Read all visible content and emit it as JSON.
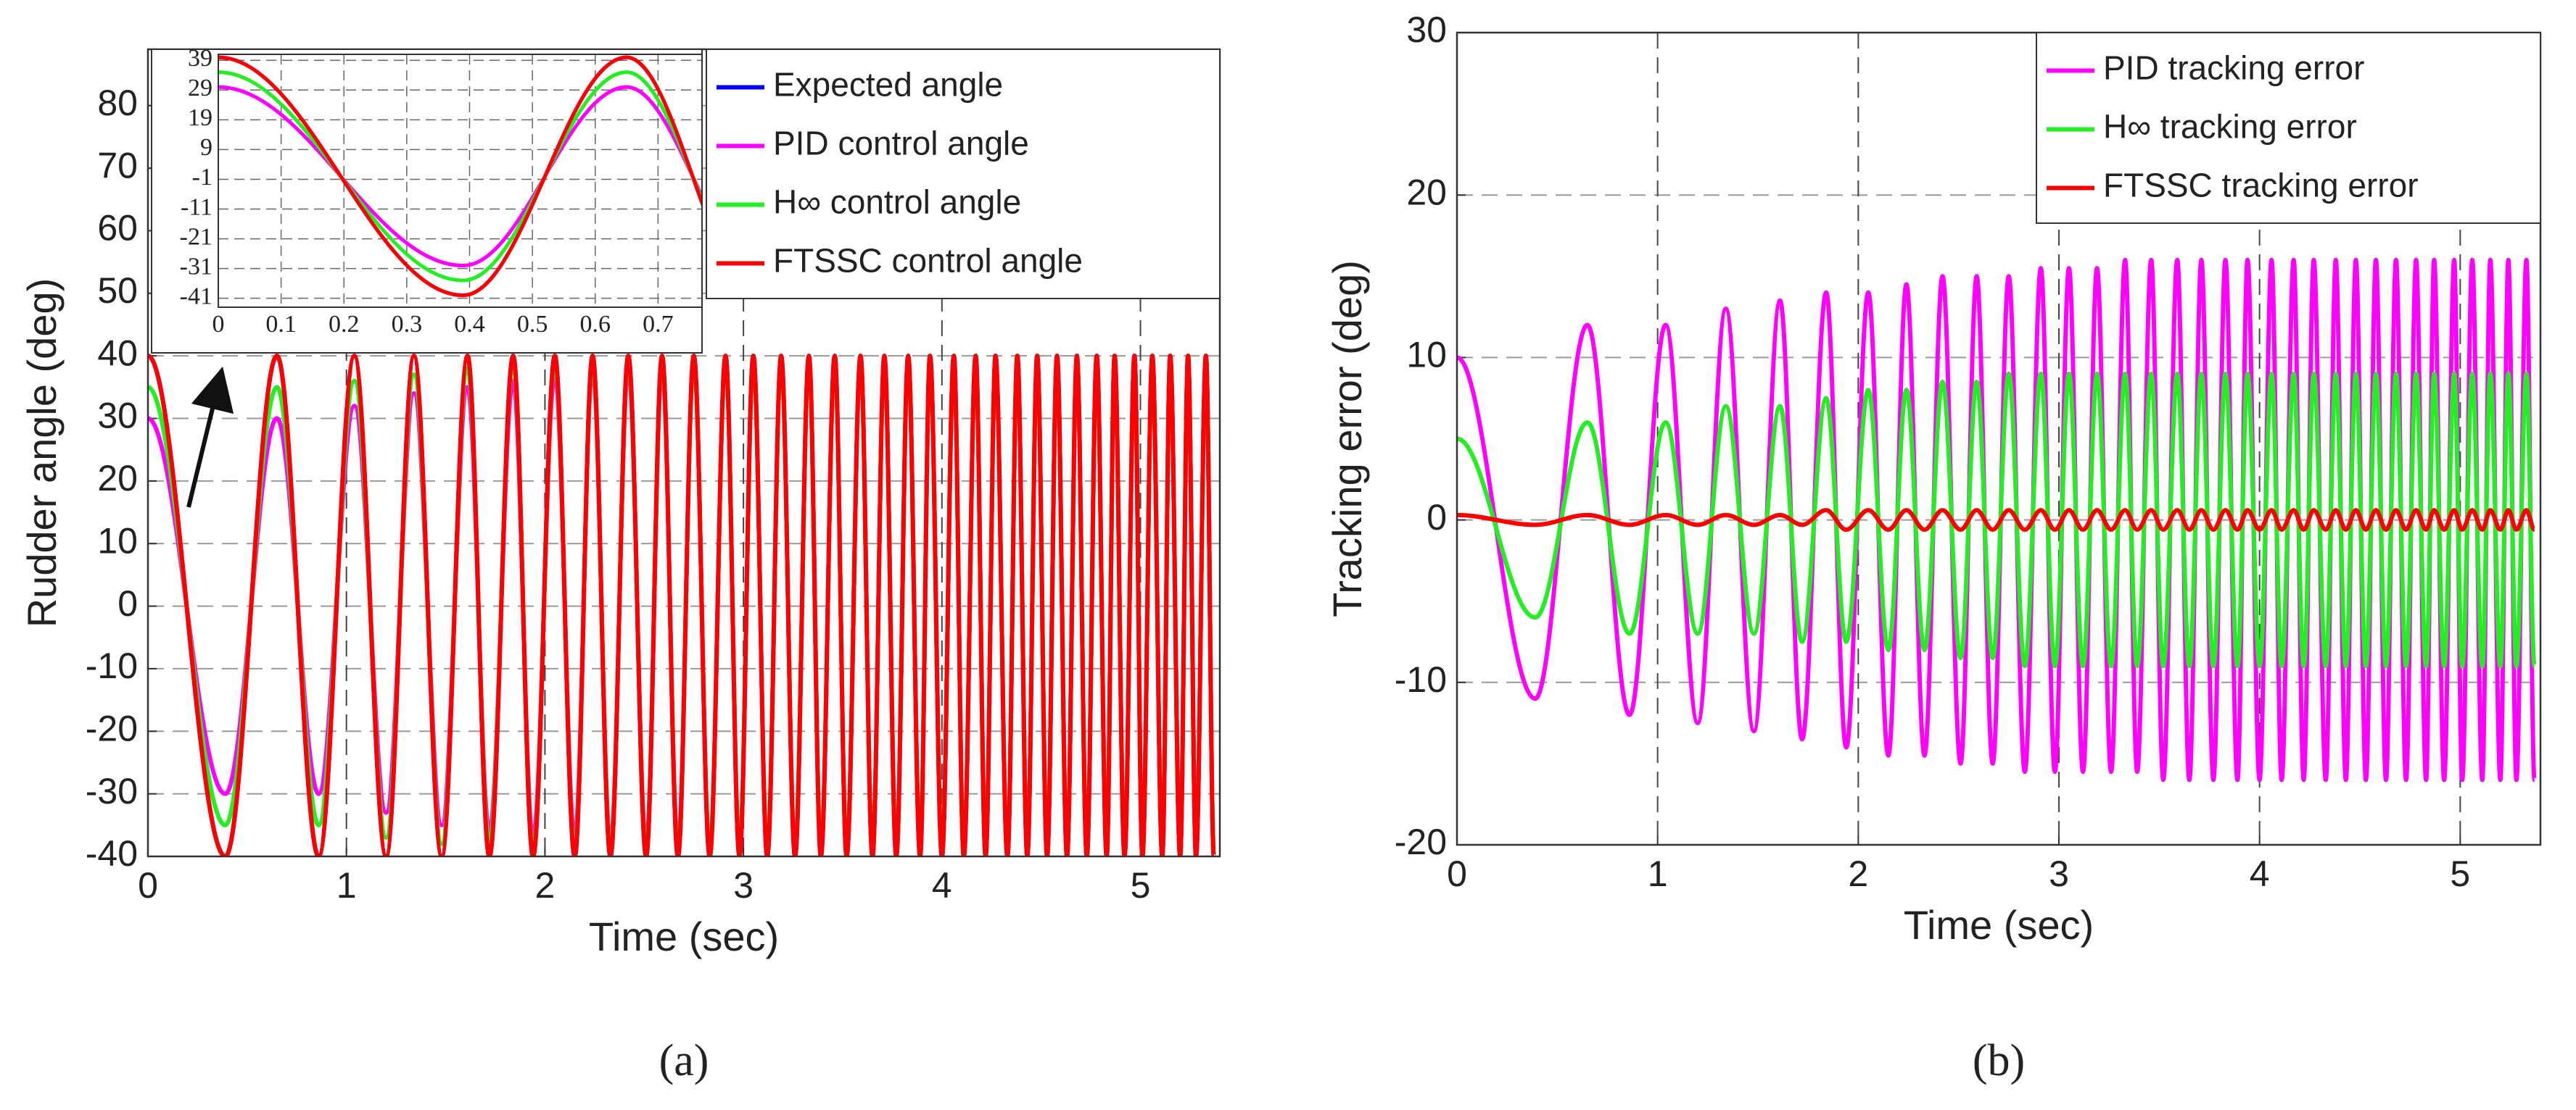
{
  "chart_data": [
    {
      "type": "line",
      "caption": "(a)",
      "xlabel": "Time (sec)",
      "ylabel": "Rudder angle (deg)",
      "xlim": [
        0,
        5.4
      ],
      "xticks": [
        0,
        1,
        2,
        3,
        4,
        5
      ],
      "ylim": [
        -40,
        89
      ],
      "yticks": [
        -40,
        -30,
        -20,
        -10,
        0,
        10,
        20,
        30,
        40,
        50,
        60,
        70,
        80
      ],
      "grid": true,
      "legend": "upper right",
      "x": [
        0,
        0.39,
        0.65,
        0.86,
        1.04,
        1.2,
        1.34,
        1.48,
        1.61,
        1.72,
        1.84,
        1.94,
        2.05,
        2.15,
        2.24,
        2.33,
        2.42,
        2.51,
        2.59,
        2.67,
        2.75,
        2.83,
        2.91,
        2.98,
        3.05,
        3.12,
        3.19,
        3.26,
        3.33,
        3.39,
        3.46,
        3.52,
        3.59,
        3.65,
        3.71,
        3.77,
        3.83,
        3.89,
        3.94,
        4.0,
        4.06,
        4.11,
        4.17,
        4.22,
        4.27,
        4.33,
        4.38,
        4.43,
        4.48,
        4.53,
        4.58,
        4.63,
        4.68,
        4.73,
        4.78,
        4.83,
        4.87,
        4.92,
        4.97,
        5.01,
        5.06,
        5.11,
        5.15,
        5.2,
        5.24,
        5.28,
        5.33,
        5.37
      ],
      "series": [
        {
          "name": "Expected angle",
          "color": "#0000ff",
          "values": [
            40,
            -40,
            40,
            -40,
            40,
            -40,
            40,
            -40,
            40,
            -40,
            40,
            -40,
            40,
            -40,
            40,
            -40,
            40,
            -40,
            40,
            -40,
            40,
            -40,
            40,
            -40,
            40,
            -40,
            40,
            -40,
            40,
            -40,
            40,
            -40,
            40,
            -40,
            40,
            -40,
            40,
            -40,
            40,
            -40,
            40,
            -40,
            40,
            -40,
            40,
            -40,
            40,
            -40,
            40,
            -40,
            40,
            -40,
            40,
            -40,
            40,
            -40,
            40,
            -40,
            40,
            -40,
            40,
            -40,
            40,
            -40,
            40,
            -40,
            40,
            -40
          ]
        },
        {
          "name": "PID control angle",
          "color": "#ff00ff",
          "values": [
            30,
            -30,
            30,
            -30,
            32,
            -33,
            34,
            -35,
            35,
            -36,
            36,
            -37,
            37,
            -37,
            38,
            -38,
            38,
            -38,
            38,
            -38,
            39,
            -39,
            39,
            -39,
            39,
            -39,
            39,
            -39,
            39,
            -39,
            39,
            -39,
            39,
            -39,
            39,
            -39,
            39,
            -39,
            39,
            -39,
            39,
            -39,
            39,
            -39,
            39,
            -39,
            39,
            -39,
            39,
            -39,
            39,
            -39,
            39,
            -39,
            39,
            -39,
            39,
            -39,
            39,
            -39,
            39,
            -39,
            39,
            -39,
            39,
            -39,
            39,
            -39
          ]
        },
        {
          "name": "H∞ control angle",
          "color": "#22ee22",
          "values": [
            35,
            -35,
            35,
            -35,
            36,
            -37,
            37,
            -38,
            38,
            -38,
            39,
            -39,
            39,
            -39,
            39,
            -39,
            39,
            -39,
            39,
            -39,
            39,
            -39,
            39,
            -39,
            39,
            -39,
            39,
            -39,
            39,
            -39,
            39,
            -39,
            39,
            -39,
            39,
            -39,
            39,
            -39,
            39,
            -39,
            39,
            -39,
            39,
            -39,
            39,
            -39,
            39,
            -39,
            39,
            -39,
            39,
            -39,
            39,
            -39,
            39,
            -39,
            39,
            -39,
            39,
            -39,
            39,
            -39,
            39,
            -39,
            39,
            -39,
            39,
            -39
          ]
        },
        {
          "name": "FTSSC control angle",
          "color": "#ff0000",
          "values": [
            40,
            -40,
            40,
            -40,
            40,
            -40,
            40,
            -40,
            40,
            -40,
            40,
            -40,
            40,
            -40,
            40,
            -40,
            40,
            -40,
            40,
            -40,
            40,
            -40,
            40,
            -40,
            40,
            -40,
            40,
            -40,
            40,
            -40,
            40,
            -40,
            40,
            -40,
            40,
            -40,
            40,
            -40,
            40,
            -40,
            40,
            -40,
            40,
            -40,
            40,
            -40,
            40,
            -40,
            40,
            -40,
            40,
            -40,
            40,
            -40,
            40,
            -40,
            40,
            -40,
            40,
            -40,
            40,
            -40,
            40,
            -40,
            40,
            -40,
            40,
            -40
          ]
        }
      ],
      "inset": {
        "xlim": [
          0,
          0.77
        ],
        "xticks": [
          0,
          0.1,
          0.2,
          0.3,
          0.4,
          0.5,
          0.6,
          0.7
        ],
        "ylim": [
          -44,
          41
        ],
        "yticks": [
          39,
          29,
          19,
          9,
          -1,
          -11,
          -21,
          -31,
          -41
        ]
      }
    },
    {
      "type": "line",
      "caption": "(b)",
      "xlabel": "Time (sec)",
      "ylabel": "Tracking error (deg)",
      "xlim": [
        0,
        5.4
      ],
      "xticks": [
        0,
        1,
        2,
        3,
        4,
        5
      ],
      "ylim": [
        -20,
        30
      ],
      "yticks": [
        -20,
        -10,
        0,
        10,
        20,
        30
      ],
      "grid": true,
      "legend": "upper right",
      "x": [
        0,
        0.39,
        0.65,
        0.86,
        1.04,
        1.2,
        1.34,
        1.48,
        1.61,
        1.72,
        1.84,
        1.94,
        2.05,
        2.15,
        2.24,
        2.33,
        2.42,
        2.51,
        2.59,
        2.67,
        2.75,
        2.83,
        2.91,
        2.98,
        3.05,
        3.12,
        3.19,
        3.26,
        3.33,
        3.39,
        3.46,
        3.52,
        3.59,
        3.65,
        3.71,
        3.77,
        3.83,
        3.89,
        3.94,
        4.0,
        4.06,
        4.11,
        4.17,
        4.22,
        4.27,
        4.33,
        4.38,
        4.43,
        4.48,
        4.53,
        4.58,
        4.63,
        4.68,
        4.73,
        4.78,
        4.83,
        4.87,
        4.92,
        4.97,
        5.01,
        5.06,
        5.11,
        5.15,
        5.2,
        5.24,
        5.28,
        5.33,
        5.37
      ],
      "series": [
        {
          "name": "PID tracking error",
          "color": "#ff00ff",
          "values": [
            10,
            -11,
            12,
            -12,
            12,
            -12.5,
            13,
            -13,
            13.5,
            -13.5,
            14,
            -14,
            14,
            -14.5,
            14.5,
            -14.5,
            15,
            -15,
            15,
            -15,
            15,
            -15.5,
            15.5,
            -15.5,
            15.5,
            -15.5,
            15.5,
            -15.5,
            16,
            -15.5,
            16,
            -16,
            16,
            -16,
            16,
            -16,
            16,
            -16,
            16,
            -16,
            16,
            -16,
            16,
            -16,
            16,
            -16,
            16,
            -16,
            16,
            -16,
            16,
            -16,
            16,
            -16,
            16,
            -16,
            16,
            -16,
            16,
            -16,
            16,
            -16,
            16,
            -16,
            16,
            -16,
            16,
            -16
          ]
        },
        {
          "name": "H∞ tracking error",
          "color": "#22ee22",
          "values": [
            5,
            -6,
            6,
            -7,
            6,
            -7,
            7,
            -7,
            7,
            -7.5,
            7.5,
            -7.5,
            8,
            -8,
            8,
            -8,
            8.5,
            -8.5,
            8.5,
            -8.5,
            9,
            -9,
            9,
            -9,
            9,
            -9,
            9,
            -9,
            9,
            -9,
            9,
            -9,
            9,
            -9,
            9,
            -9,
            9,
            -9,
            9,
            -9,
            9,
            -9,
            9,
            -9,
            9,
            -9,
            9,
            -9,
            9,
            -9,
            9,
            -9,
            9,
            -9,
            9,
            -9,
            9,
            -9,
            9,
            -9,
            9,
            -9,
            9,
            -9,
            9,
            -9,
            9,
            -9
          ]
        },
        {
          "name": "FTSSC tracking error",
          "color": "#ff0000",
          "values": [
            0.3,
            -0.3,
            0.3,
            -0.3,
            0.3,
            -0.3,
            0.3,
            -0.3,
            0.3,
            -0.3,
            0.6,
            -0.6,
            0.6,
            -0.6,
            0.6,
            -0.6,
            0.6,
            -0.6,
            0.6,
            -0.6,
            0.6,
            -0.6,
            0.6,
            -0.6,
            0.6,
            -0.6,
            0.6,
            -0.6,
            0.6,
            -0.6,
            0.6,
            -0.6,
            0.6,
            -0.6,
            0.6,
            -0.6,
            0.6,
            -0.6,
            0.6,
            -0.6,
            0.6,
            -0.6,
            0.6,
            -0.6,
            0.6,
            -0.6,
            0.6,
            -0.6,
            0.6,
            -0.6,
            0.6,
            -0.6,
            0.6,
            -0.6,
            0.6,
            -0.6,
            0.6,
            -0.6,
            0.6,
            -0.6,
            0.6,
            -0.6,
            0.6,
            -0.6,
            0.6,
            -0.6,
            0.6,
            -0.6
          ]
        }
      ]
    }
  ]
}
